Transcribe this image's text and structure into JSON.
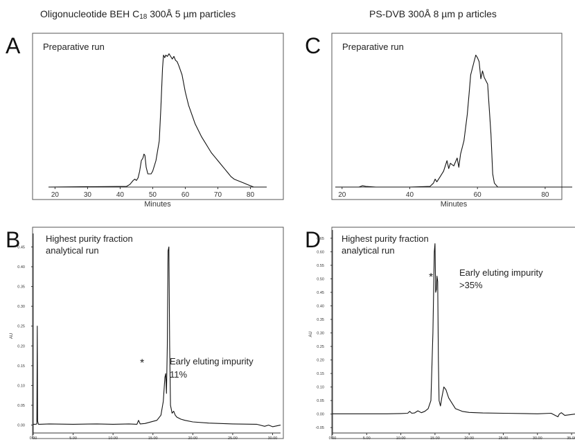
{
  "headers": {
    "left_main": "Oligonucleotide BEH C",
    "left_sub": "18",
    "left_rest": " 300Å 5 µm particles",
    "right": "PS-DVB 300Å 8 µm p articles"
  },
  "panel_letters": {
    "a": "A",
    "b": "B",
    "c": "C",
    "d": "D"
  },
  "annotations": {
    "a_title": "Preparative run",
    "c_title": "Preparative run",
    "b_title_1": "Highest purity fraction",
    "b_title_2": "analytical run",
    "d_title_1": "Highest purity fraction",
    "d_title_2": "analytical run",
    "b_impurity_1": "Early eluting impurity",
    "b_impurity_2": "11%",
    "d_impurity_1": "Early eluting impurity",
    "d_impurity_2": ">35%",
    "star": "*"
  },
  "chart_data": [
    {
      "id": "A",
      "type": "line",
      "title": "Preparative run",
      "xlabel": "Minutes",
      "ylabel": "",
      "xlim": [
        18,
        85
      ],
      "ylim": [
        0,
        1.05
      ],
      "xticks": [
        20,
        30,
        40,
        50,
        60,
        70,
        80
      ],
      "series": [
        {
          "x": [
            18,
            42,
            43,
            44,
            44.5,
            45,
            45.5,
            46,
            46.5,
            47,
            47.3,
            47.6,
            48,
            48.5,
            49,
            49.5,
            50,
            51,
            52,
            52.5,
            53,
            53.3,
            53.7,
            54,
            54.5,
            55,
            55.5,
            56,
            56.5,
            57,
            57.5,
            58,
            59,
            60,
            61,
            62,
            63,
            64,
            65,
            66,
            67,
            68,
            69,
            70,
            71,
            72,
            73,
            74,
            75,
            76,
            77,
            78,
            79,
            80,
            81,
            85
          ],
          "y": [
            0,
            0.005,
            0.02,
            0.05,
            0.06,
            0.05,
            0.07,
            0.12,
            0.2,
            0.22,
            0.25,
            0.24,
            0.15,
            0.1,
            0.1,
            0.1,
            0.12,
            0.2,
            0.35,
            0.6,
            0.9,
            1.0,
            0.98,
            1.0,
            0.99,
            1.01,
            0.99,
            0.97,
            0.99,
            0.96,
            0.95,
            0.92,
            0.85,
            0.72,
            0.62,
            0.55,
            0.48,
            0.43,
            0.38,
            0.34,
            0.3,
            0.26,
            0.23,
            0.2,
            0.17,
            0.14,
            0.11,
            0.08,
            0.06,
            0.05,
            0.04,
            0.03,
            0.02,
            0.01,
            0,
            0
          ]
        }
      ]
    },
    {
      "id": "C",
      "type": "line",
      "title": "Preparative run",
      "xlabel": "Minutes",
      "ylabel": "",
      "xlim": [
        18,
        88
      ],
      "ylim": [
        0,
        1.05
      ],
      "xticks": [
        20,
        40,
        60,
        80
      ],
      "series": [
        {
          "x": [
            18,
            25,
            26,
            27,
            30,
            40,
            46,
            47,
            47.5,
            48,
            49,
            50,
            51,
            51.5,
            52,
            53,
            54,
            54.5,
            55,
            56,
            57,
            57.5,
            58,
            59,
            59.5,
            60,
            60.5,
            61,
            61.5,
            62,
            63,
            64,
            64.5,
            65,
            66,
            88
          ],
          "y": [
            0,
            0,
            0.01,
            0.005,
            0,
            0,
            0.005,
            0.03,
            0.06,
            0.04,
            0.08,
            0.12,
            0.2,
            0.14,
            0.18,
            0.16,
            0.22,
            0.15,
            0.25,
            0.35,
            0.55,
            0.7,
            0.85,
            0.95,
            1.0,
            0.98,
            0.95,
            0.82,
            0.88,
            0.83,
            0.78,
            0.4,
            0.1,
            0.03,
            0,
            0
          ]
        }
      ]
    },
    {
      "id": "B",
      "type": "line",
      "title": "Highest purity fraction analytical run",
      "xlabel": "",
      "ylabel": "AU",
      "xlim": [
        0,
        31
      ],
      "ylim": [
        -0.02,
        0.47
      ],
      "xticks": [
        "0.00",
        "5.00",
        "10.00",
        "15.00",
        "20.00",
        "25.00",
        "30.00"
      ],
      "yticks": [
        "0.00",
        "0.05",
        "0.10",
        "0.15",
        "0.20",
        "0.25",
        "0.30",
        "0.35",
        "0.40",
        "0.45"
      ],
      "series": [
        {
          "x": [
            0,
            0.3,
            0.45,
            0.5,
            0.55,
            0.65,
            0.8,
            2,
            5,
            8,
            10,
            12,
            13,
            13.2,
            13.4,
            14,
            15.5,
            16,
            16.3,
            16.5,
            16.6,
            16.7,
            16.8,
            16.9,
            17,
            17.1,
            17.2,
            17.4,
            17.6,
            17.8,
            18,
            18.5,
            19,
            20,
            22,
            25,
            28,
            29,
            29.5,
            30,
            31
          ],
          "y": [
            0.002,
            0.002,
            0.003,
            0.25,
            0.01,
            0.002,
            0.002,
            0.003,
            0.002,
            0.003,
            0.002,
            0.003,
            0.002,
            0.012,
            0.003,
            0.004,
            0.012,
            0.025,
            0.06,
            0.12,
            0.13,
            0.08,
            0.2,
            0.44,
            0.45,
            0.2,
            0.05,
            0.03,
            0.035,
            0.025,
            0.02,
            0.015,
            0.012,
            0.008,
            0.005,
            0.003,
            0.002,
            -0.003,
            0.0,
            -0.004,
            0
          ]
        }
      ]
    },
    {
      "id": "D",
      "type": "line",
      "title": "Highest purity fraction analytical run",
      "xlabel": "",
      "ylabel": "AU",
      "xlim": [
        0,
        35.5
      ],
      "ylim": [
        -0.07,
        0.66
      ],
      "xticks": [
        "0.00",
        "5.00",
        "10.00",
        "15.00",
        "20.00",
        "25.00",
        "30.00",
        "35.00"
      ],
      "yticks": [
        "-0.05",
        "0.00",
        "0.05",
        "0.10",
        "0.15",
        "0.20",
        "0.25",
        "0.30",
        "0.35",
        "0.40",
        "0.45",
        "0.50",
        "0.55",
        "0.60",
        "0.65"
      ],
      "series": [
        {
          "x": [
            0,
            5,
            8,
            10,
            11,
            11.3,
            11.6,
            12,
            12.5,
            13,
            13.5,
            14,
            14.4,
            14.7,
            14.9,
            15.0,
            15.1,
            15.2,
            15.3,
            15.4,
            15.5,
            15.6,
            15.8,
            16,
            16.3,
            16.6,
            17,
            17.5,
            18,
            19,
            20,
            22,
            25,
            28,
            30,
            32,
            33,
            33.2,
            33.5,
            34,
            35.5
          ],
          "y": [
            0.001,
            0.001,
            0.001,
            0.002,
            0.003,
            0.01,
            0.003,
            0.004,
            0.012,
            0.005,
            0.01,
            0.02,
            0.05,
            0.3,
            0.6,
            0.63,
            0.45,
            0.46,
            0.51,
            0.49,
            0.2,
            0.05,
            0.03,
            0.06,
            0.1,
            0.09,
            0.06,
            0.04,
            0.02,
            0.01,
            0.006,
            0.004,
            0.003,
            0.002,
            0.001,
            0.003,
            -0.01,
            0.0,
            0.005,
            -0.005,
            0
          ]
        }
      ]
    }
  ]
}
